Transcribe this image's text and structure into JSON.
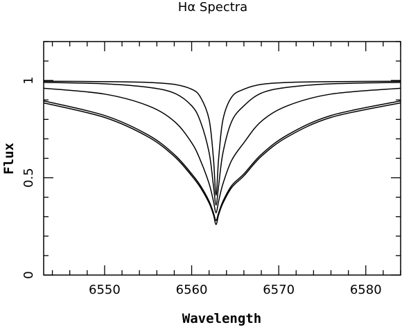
{
  "chart_data": {
    "type": "line",
    "title": "Hα Spectra",
    "xlabel": "Wavelength",
    "ylabel": "Flux",
    "xlim": [
      6543,
      6584
    ],
    "ylim": [
      0,
      1.2
    ],
    "x_ticks": [
      6550,
      6560,
      6570,
      6580
    ],
    "y_ticks": [
      {
        "value": 0,
        "label": "0"
      },
      {
        "value": 0.5,
        "label": "0.5"
      },
      {
        "value": 1,
        "label": "1"
      }
    ],
    "line_center": 6562.8,
    "grid": false,
    "legend": "none",
    "series": [
      {
        "x": [
          6543,
          6550,
          6555,
          6558,
          6560,
          6561,
          6562,
          6562.5,
          6562.8,
          6563.1,
          6563.6,
          6564.6,
          6566,
          6568,
          6571,
          6576,
          6584
        ],
        "y": [
          0.996,
          0.994,
          0.99,
          0.98,
          0.955,
          0.915,
          0.8,
          0.6,
          0.41,
          0.6,
          0.8,
          0.915,
          0.955,
          0.98,
          0.99,
          0.994,
          0.996
        ]
      },
      {
        "x": [
          6543,
          6550,
          6555,
          6558,
          6560,
          6561,
          6562,
          6562.5,
          6562.8,
          6563.1,
          6563.6,
          6564.6,
          6566,
          6568,
          6571,
          6576,
          6584
        ],
        "y": [
          0.99,
          0.983,
          0.965,
          0.935,
          0.87,
          0.79,
          0.63,
          0.46,
          0.36,
          0.46,
          0.63,
          0.79,
          0.87,
          0.935,
          0.965,
          0.983,
          0.99
        ]
      },
      {
        "x": [
          6543,
          6550,
          6555,
          6558,
          6560,
          6561,
          6562,
          6562.5,
          6562.8,
          6563.1,
          6563.6,
          6564.6,
          6566,
          6568,
          6571,
          6576,
          6584
        ],
        "y": [
          0.96,
          0.93,
          0.87,
          0.79,
          0.68,
          0.59,
          0.47,
          0.38,
          0.32,
          0.38,
          0.47,
          0.59,
          0.68,
          0.79,
          0.87,
          0.93,
          0.96
        ]
      },
      {
        "x": [
          6543,
          6550,
          6555,
          6558,
          6560,
          6561,
          6562,
          6562.5,
          6562.8,
          6563.1,
          6563.6,
          6564.6,
          6566,
          6568,
          6571,
          6576,
          6584
        ],
        "y": [
          0.895,
          0.82,
          0.72,
          0.62,
          0.52,
          0.46,
          0.38,
          0.32,
          0.28,
          0.32,
          0.38,
          0.46,
          0.52,
          0.62,
          0.72,
          0.82,
          0.895
        ]
      },
      {
        "x": [
          6543,
          6550,
          6555,
          6558,
          6560,
          6561,
          6562,
          6562.5,
          6562.8,
          6563.1,
          6563.6,
          6564.6,
          6566,
          6568,
          6571,
          6576,
          6584
        ],
        "y": [
          0.885,
          0.81,
          0.71,
          0.61,
          0.51,
          0.45,
          0.37,
          0.31,
          0.26,
          0.31,
          0.37,
          0.45,
          0.51,
          0.61,
          0.71,
          0.81,
          0.885
        ]
      }
    ]
  }
}
